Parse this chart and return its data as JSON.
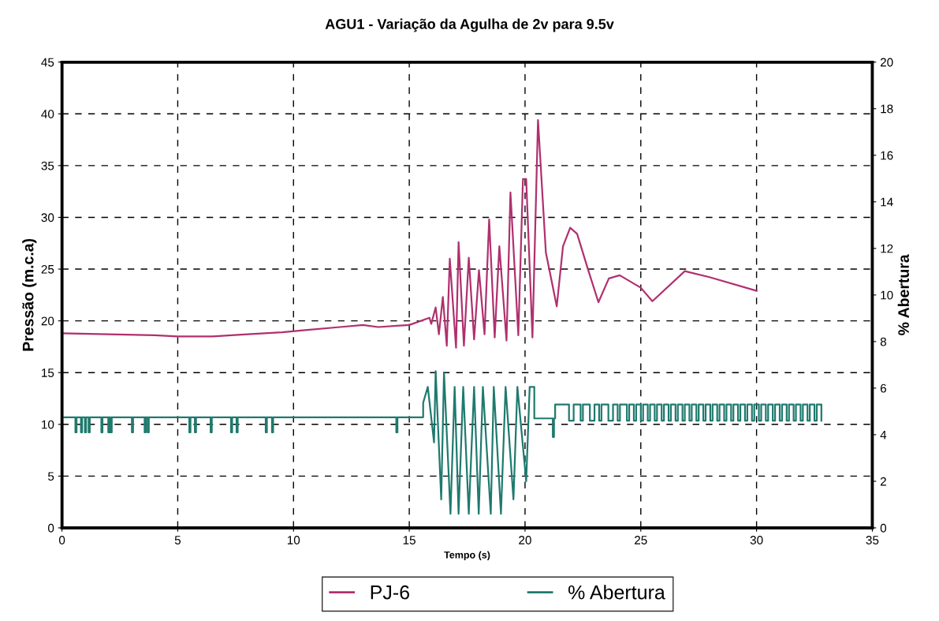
{
  "chart_data": {
    "type": "line",
    "title": "AGU1 - Variação da Agulha de 2v para 9.5v",
    "xlabel": "Tempo (s)",
    "ylabel": "Pressão (m.c.a)",
    "y2label": "% Abertura",
    "xlim": [
      0,
      35
    ],
    "xticks": [
      0,
      5,
      10,
      15,
      20,
      25,
      30,
      35
    ],
    "ylim": [
      0,
      45
    ],
    "yticks": [
      0,
      5,
      10,
      15,
      20,
      25,
      30,
      35,
      40,
      45
    ],
    "y2lim": [
      0,
      20
    ],
    "y2ticks": [
      0,
      2,
      4,
      6,
      8,
      10,
      12,
      14,
      16,
      18,
      20
    ],
    "grid": true,
    "legend": "bottom",
    "line_style": "solid",
    "marker": "none",
    "series": [
      {
        "name": "PJ-6",
        "color": "#b0306e",
        "axis": "y",
        "x": [
          0,
          2,
          4,
          5,
          6.5,
          8,
          9.5,
          10.5,
          12,
          13,
          13.66,
          15.0,
          15.87,
          15.95,
          16.14,
          16.28,
          16.45,
          16.62,
          16.75,
          17.02,
          17.13,
          17.36,
          17.57,
          17.8,
          18.01,
          18.25,
          18.45,
          18.69,
          18.89,
          19.2,
          19.37,
          19.71,
          19.91,
          20.05,
          20.32,
          20.56,
          20.9,
          21.37,
          21.64,
          21.95,
          22.25,
          22.73,
          23.17,
          23.62,
          24.09,
          25.0,
          25.5,
          26.9,
          28.0,
          30.0
        ],
        "values": [
          18.8,
          18.7,
          18.6,
          18.5,
          18.5,
          18.7,
          18.9,
          19.1,
          19.4,
          19.6,
          19.4,
          19.6,
          20.3,
          19.7,
          21.3,
          18.7,
          22.3,
          17.6,
          26.0,
          17.4,
          27.6,
          17.6,
          26.1,
          18.2,
          24.9,
          18.7,
          29.8,
          18.4,
          27.2,
          18.1,
          32.4,
          18.6,
          33.7,
          33.7,
          18.4,
          39.4,
          26.6,
          21.4,
          27.2,
          29.0,
          28.4,
          24.9,
          21.8,
          24.1,
          24.4,
          23.2,
          21.9,
          24.8,
          24.2,
          22.9
        ]
      },
      {
        "name": "% Abertura",
        "color": "#1f7a6e",
        "axis": "y2",
        "x": [
          0,
          0.58,
          0.58,
          0.63,
          0.63,
          0.82,
          0.82,
          0.87,
          0.87,
          0.99,
          0.99,
          1.04,
          1.04,
          1.15,
          1.15,
          1.2,
          1.2,
          1.7,
          1.7,
          1.75,
          1.75,
          2.0,
          2.0,
          2.05,
          2.05,
          2.1,
          2.1,
          2.15,
          2.15,
          3.02,
          3.02,
          3.07,
          3.07,
          3.57,
          3.57,
          3.62,
          3.62,
          3.7,
          3.7,
          3.75,
          3.75,
          5.5,
          5.5,
          5.55,
          5.55,
          5.74,
          5.74,
          5.79,
          5.79,
          6.42,
          6.42,
          6.47,
          6.47,
          7.3,
          7.3,
          7.35,
          7.35,
          7.54,
          7.54,
          7.59,
          7.59,
          8.8,
          8.8,
          8.85,
          8.85,
          9.07,
          9.07,
          9.12,
          9.12,
          14.44,
          14.44,
          14.49,
          14.49,
          15.6,
          15.6,
          15.8,
          16.07,
          16.14,
          16.38,
          16.5,
          16.78,
          16.96,
          17.13,
          17.33,
          17.57,
          17.8,
          18.0,
          18.18,
          18.52,
          18.65,
          18.96,
          19.16,
          19.5,
          19.67,
          20.05,
          20.2,
          20.4,
          20.4,
          21.2,
          21.2,
          21.25,
          21.25,
          21.3,
          21.3,
          21.9,
          21.9,
          22.1,
          22.1,
          22.4,
          22.4,
          22.5,
          22.5,
          22.8,
          22.8,
          23.0,
          23.0,
          23.2,
          23.2,
          23.3,
          23.3,
          23.6,
          23.6,
          23.8,
          23.8,
          24.0,
          24.0,
          24.1,
          24.1,
          24.4,
          24.4,
          24.5,
          24.5,
          24.7,
          24.7,
          24.8,
          24.8,
          25.0,
          25.0,
          25.1,
          25.1,
          25.3,
          25.3,
          25.4,
          25.4,
          25.6,
          25.6,
          25.7,
          25.7,
          25.9,
          25.9,
          26.0,
          26.0,
          26.2,
          26.2,
          26.3,
          26.3,
          26.5,
          26.5,
          26.6,
          26.6,
          26.8,
          26.8,
          26.9,
          26.9,
          27.1,
          27.1,
          27.2,
          27.2,
          27.4,
          27.4,
          27.5,
          27.5,
          27.7,
          27.7,
          27.8,
          27.8,
          28.0,
          28.0,
          28.1,
          28.1,
          28.3,
          28.3,
          28.4,
          28.4,
          28.6,
          28.6,
          28.7,
          28.7,
          28.9,
          28.9,
          29.0,
          29.0,
          29.2,
          29.2,
          29.3,
          29.3,
          29.5,
          29.5,
          29.6,
          29.6,
          29.8,
          29.8,
          29.9,
          29.9,
          30.1,
          30.1,
          30.2,
          30.2,
          30.4,
          30.4,
          30.5,
          30.5,
          30.7,
          30.7,
          30.8,
          30.8,
          31.0,
          31.0,
          31.1,
          31.1,
          31.3,
          31.3,
          31.4,
          31.4,
          31.6,
          31.6,
          31.7,
          31.7,
          31.9,
          31.9,
          32.0,
          32.0,
          32.2,
          32.2,
          32.3,
          32.3,
          32.5,
          32.5,
          32.6,
          32.6,
          32.8,
          32.8
        ],
        "values": [
          4.75,
          4.75,
          4.1,
          4.1,
          4.75,
          4.75,
          4.1,
          4.1,
          4.75,
          4.75,
          4.1,
          4.1,
          4.75,
          4.75,
          4.1,
          4.1,
          4.75,
          4.75,
          4.1,
          4.1,
          4.75,
          4.75,
          4.1,
          4.1,
          4.75,
          4.75,
          4.1,
          4.1,
          4.75,
          4.75,
          4.1,
          4.1,
          4.75,
          4.75,
          4.1,
          4.1,
          4.75,
          4.75,
          4.1,
          4.1,
          4.75,
          4.75,
          4.1,
          4.1,
          4.75,
          4.75,
          4.1,
          4.1,
          4.75,
          4.75,
          4.1,
          4.1,
          4.75,
          4.75,
          4.1,
          4.1,
          4.75,
          4.75,
          4.1,
          4.1,
          4.75,
          4.75,
          4.1,
          4.1,
          4.75,
          4.75,
          4.1,
          4.1,
          4.75,
          4.75,
          4.1,
          4.1,
          4.75,
          4.75,
          5.37,
          6.05,
          3.67,
          6.73,
          1.22,
          6.67,
          0.6,
          6.05,
          0.6,
          6.05,
          0.6,
          6.05,
          0.6,
          6.05,
          0.6,
          6.05,
          0.6,
          6.05,
          1.22,
          6.05,
          2.0,
          6.05,
          6.05,
          4.7,
          4.7,
          3.9,
          3.9,
          4.7,
          4.7,
          5.3,
          5.3,
          4.6,
          4.6,
          5.3,
          5.3,
          4.6,
          4.6,
          5.3,
          5.3,
          4.6,
          4.6,
          5.3,
          5.3,
          4.6,
          4.6,
          5.3,
          5.3,
          4.6,
          4.6,
          5.3,
          5.3,
          4.6,
          4.6,
          5.3,
          5.3,
          4.6,
          4.6,
          5.3,
          5.3,
          4.6,
          4.6,
          5.3,
          5.3,
          4.6,
          4.6,
          5.3,
          5.3,
          4.6,
          4.6,
          5.3,
          5.3,
          4.6,
          4.6,
          5.3,
          5.3,
          4.6,
          4.6,
          5.3,
          5.3,
          4.6,
          4.6,
          5.3,
          5.3,
          4.6,
          4.6,
          5.3,
          5.3,
          4.6,
          4.6,
          5.3,
          5.3,
          4.6,
          4.6,
          5.3,
          5.3,
          4.6,
          4.6,
          5.3,
          5.3,
          4.6,
          4.6,
          5.3,
          5.3,
          4.6,
          4.6,
          5.3,
          5.3,
          4.6,
          4.6,
          5.3,
          5.3,
          4.6,
          4.6,
          5.3,
          5.3,
          4.6,
          4.6,
          5.3,
          5.3,
          4.6,
          4.6,
          5.3,
          5.3,
          4.6,
          4.6,
          5.3,
          5.3,
          4.6,
          4.6,
          5.3,
          5.3,
          4.6,
          4.6,
          5.3,
          5.3,
          4.6,
          4.6,
          5.3,
          5.3,
          4.6,
          4.6,
          5.3,
          5.3,
          4.6,
          4.6,
          5.3,
          5.3,
          4.6,
          4.6,
          5.3,
          5.3,
          4.6,
          4.6,
          5.3,
          5.3,
          4.6,
          4.6,
          5.3,
          5.3,
          4.6,
          4.6,
          5.3,
          5.3,
          4.6,
          4.6,
          5.3,
          5.3,
          4.6
        ]
      }
    ]
  }
}
